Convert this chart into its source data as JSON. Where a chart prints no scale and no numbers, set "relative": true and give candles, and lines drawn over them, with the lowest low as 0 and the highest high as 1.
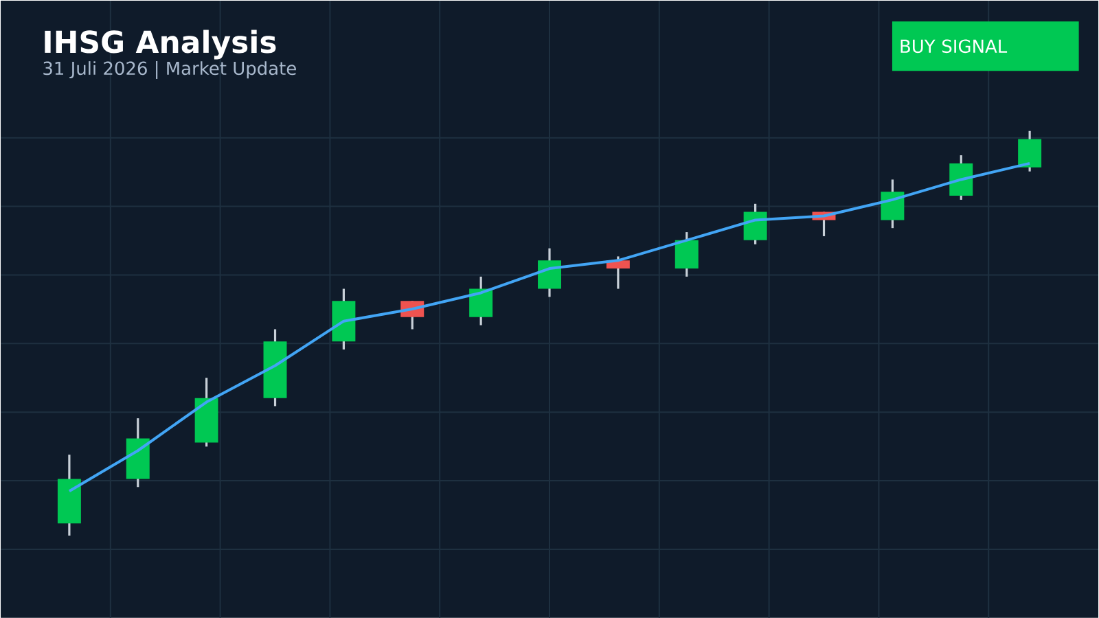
{
  "chart_data": {
    "type": "candlestick",
    "title": "IHSG Analysis",
    "subtitle": "31 Juli 2026 | Market Update",
    "annotations": [
      "BUY SIGNAL"
    ],
    "relative": true,
    "grid": true,
    "categories": [
      null,
      null,
      null,
      null,
      null,
      null,
      null,
      null,
      null,
      null,
      null,
      null,
      null,
      null,
      null
    ],
    "ohlc": [
      [
        0.03,
        0.2,
        0,
        0.14
      ],
      [
        0.14,
        0.29,
        0.12,
        0.24
      ],
      [
        0.23,
        0.39,
        0.22,
        0.34
      ],
      [
        0.34,
        0.51,
        0.32,
        0.48
      ],
      [
        0.48,
        0.61,
        0.46,
        0.58
      ],
      [
        0.58,
        0.58,
        0.51,
        0.54
      ],
      [
        0.54,
        0.64,
        0.52,
        0.61
      ],
      [
        0.61,
        0.71,
        0.59,
        0.68
      ],
      [
        0.68,
        0.69,
        0.61,
        0.66
      ],
      [
        0.66,
        0.75,
        0.64,
        0.73
      ],
      [
        0.73,
        0.82,
        0.72,
        0.8
      ],
      [
        0.8,
        0.8,
        0.74,
        0.78
      ],
      [
        0.78,
        0.88,
        0.76,
        0.85
      ],
      [
        0.84,
        0.94,
        0.83,
        0.92
      ],
      [
        0.91,
        1,
        0.9,
        0.98
      ]
    ],
    "colors": [
      "#00c853",
      "#00c853",
      "#00c853",
      "#00c853",
      "#00c853",
      "#ef5350",
      "#00c853",
      "#00c853",
      "#ef5350",
      "#00c853",
      "#00c853",
      "#ef5350",
      "#00c853",
      "#00c853",
      "#00c853"
    ],
    "series": [
      {
        "type": "line",
        "color": "#42a5f5",
        "values": [
          0.11,
          0.21,
          0.33,
          0.42,
          0.53,
          0.56,
          0.6,
          0.66,
          0.68,
          0.73,
          0.78,
          0.79,
          0.83,
          0.88,
          0.92
        ]
      }
    ]
  }
}
